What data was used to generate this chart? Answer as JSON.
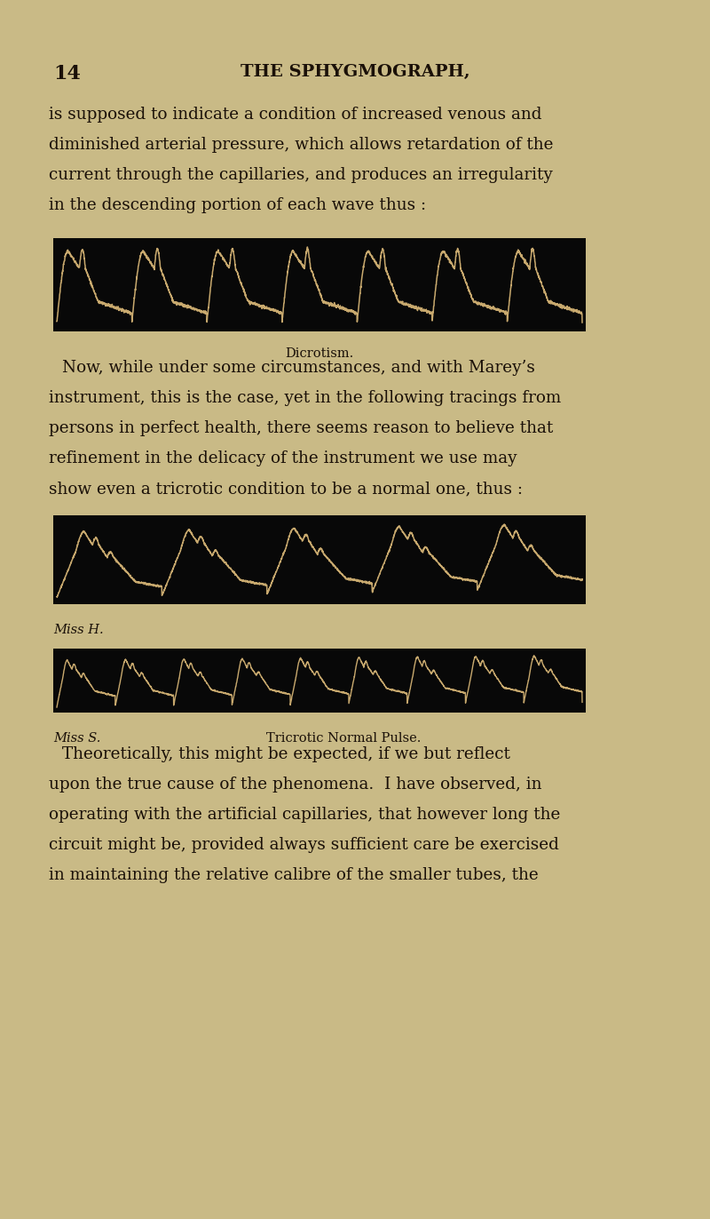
{
  "bg_color": "#c9ba86",
  "text_color": "#1a1008",
  "black_box_color": "#080808",
  "wave_color": "#c8a96e",
  "page_number": "14",
  "header": "THE SPHYGMOGRAPH,",
  "para1_line1": "is supposed to indicate a condition of increased venous and",
  "para1_line2": "diminished arterial pressure, which allows retardation of the",
  "para1_line3": "current through the capillaries, and produces an irregularity",
  "para1_line4": "in the descending portion of each wave thus :",
  "caption1": "Dicrotism.",
  "para2_line1": "Now, while under some circumstances, and with Marey’s",
  "para2_line2": "instrument, this is the case, yet in the following tracings from",
  "para2_line3": "persons in perfect health, there seems reason to believe that",
  "para2_line4": "refinement in the delicacy of the instrument we use may",
  "para2_line5": "show even a tricrotic condition to be a normal one, thus :",
  "label_miss_h": "Miss H.",
  "label_miss_s": "Miss S.",
  "caption2": "Tricrotic Normal Pulse.",
  "para3_line1": "Theoretically, this might be expected, if we but reflect",
  "para3_line2": "upon the true cause of the phenomena.  I have observed, in",
  "para3_line3": "operating with the artificial capillaries, that however long the",
  "para3_line4": "circuit might be, provided always sufficient care be exercised",
  "para3_line5": "in maintaining the relative calibre of the smaller tubes, the"
}
